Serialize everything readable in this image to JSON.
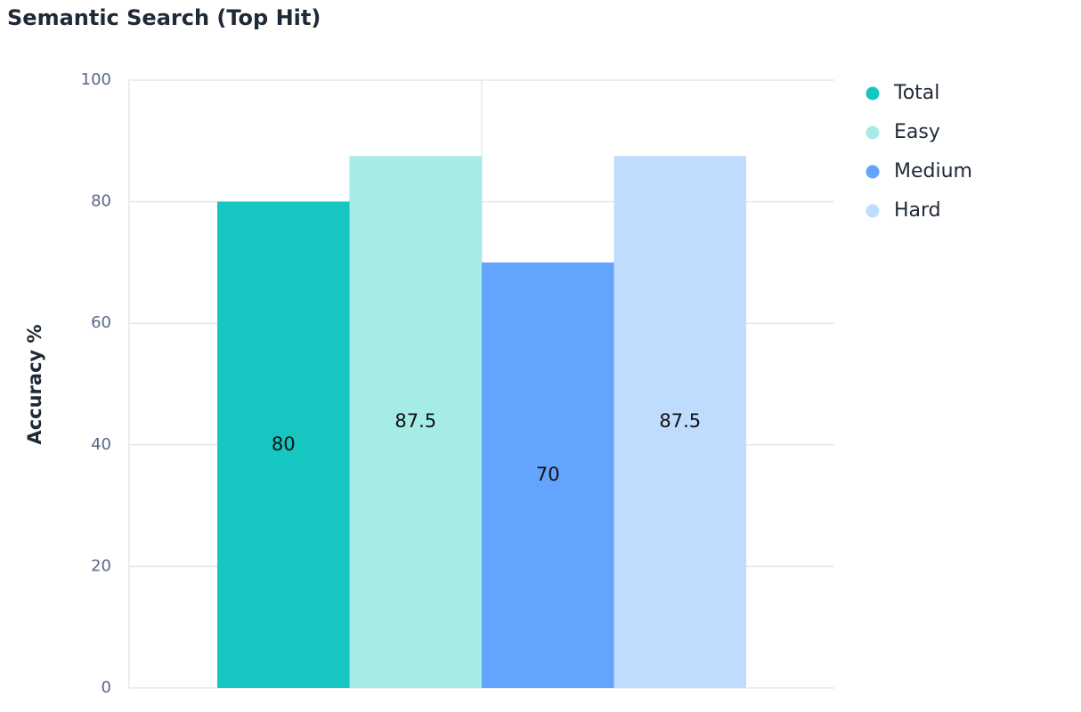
{
  "chart_data": {
    "type": "bar",
    "title": "Semantic Search (Top Hit)",
    "y_label": "Accuracy %",
    "categories": [
      null
    ],
    "series": [
      {
        "name": "Total",
        "color": "#16c6c0",
        "values": [
          80
        ]
      },
      {
        "name": "Easy",
        "color": "#a5ebe6",
        "values": [
          87.5
        ]
      },
      {
        "name": "Medium",
        "color": "#63a4ff",
        "values": [
          70
        ]
      },
      {
        "name": "Hard",
        "color": "#bfdbfe",
        "values": [
          87.5
        ]
      }
    ],
    "ylim": [
      0,
      100
    ],
    "yticks": [
      0,
      20,
      40,
      60,
      80,
      100
    ],
    "grid": true,
    "legend": "right"
  }
}
